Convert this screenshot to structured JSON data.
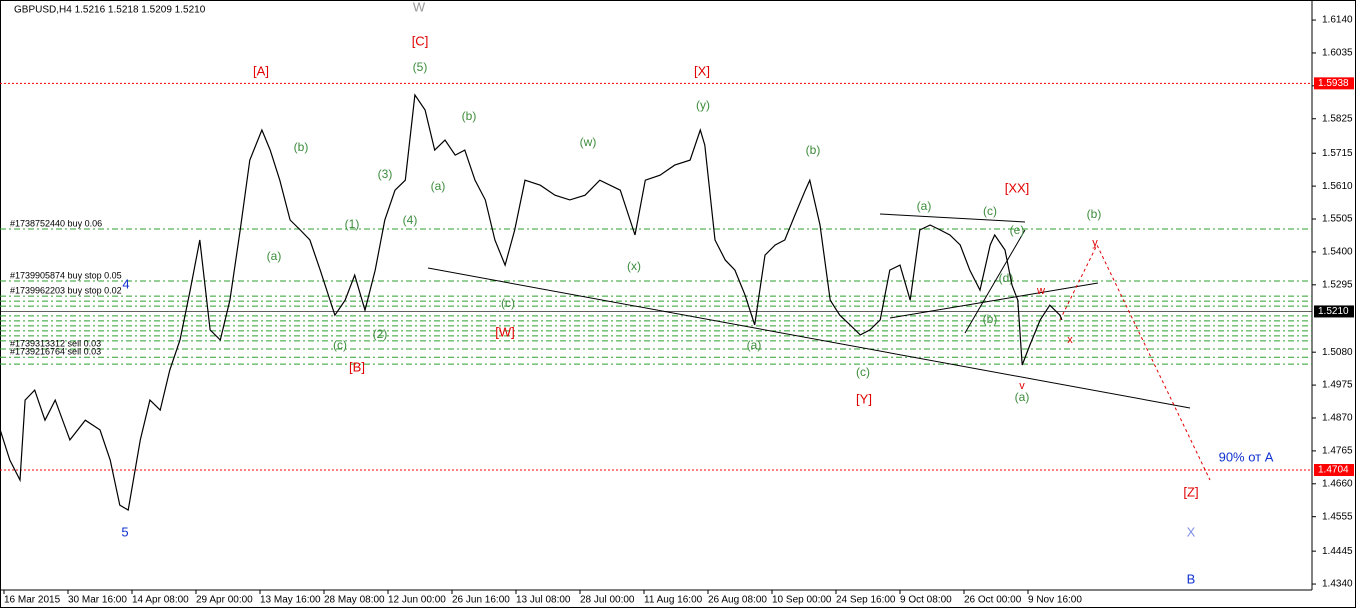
{
  "chart_data": {
    "type": "line",
    "title": "GBPUSD,H4  1.5216 1.5218 1.5209 1.5210",
    "color": "#000000",
    "xlim": [
      -0.0625,
      20.4375
    ],
    "ylim": [
      1.6204,
      1.4321
    ],
    "xticks": [
      {
        "value": 0,
        "label": "16 Mar 2015"
      },
      {
        "value": 1,
        "label": "30 Mar 16:00"
      },
      {
        "value": 2,
        "label": "14 Apr 08:00"
      },
      {
        "value": 3,
        "label": "29 Apr 00:00"
      },
      {
        "value": 4,
        "label": "13 May 16:00"
      },
      {
        "value": 5,
        "label": "28 May 08:00"
      },
      {
        "value": 6,
        "label": "12 Jun 00:00"
      },
      {
        "value": 7,
        "label": "26 Jun 16:00"
      },
      {
        "value": 8,
        "label": "13 Jul 08:00"
      },
      {
        "value": 9,
        "label": "28 Jul 00:00"
      },
      {
        "value": 10,
        "label": "11 Aug 16:00"
      },
      {
        "value": 11,
        "label": "26 Aug 08:00"
      },
      {
        "value": 12,
        "label": "10 Sep 00:00"
      },
      {
        "value": 13,
        "label": "24 Sep 16:00"
      },
      {
        "value": 14,
        "label": "9 Oct 08:00"
      },
      {
        "value": 15,
        "label": "26 Oct 00:00"
      },
      {
        "value": 16,
        "label": "9 Nov 16:00"
      }
    ],
    "yticks": [
      {
        "value": 1.614,
        "label": "1.6140"
      },
      {
        "value": 1.6035,
        "label": "1.6035"
      },
      {
        "value": 1.593,
        "label": "1.5930"
      },
      {
        "value": 1.5825,
        "label": "1.5825"
      },
      {
        "value": 1.5715,
        "label": "1.5715"
      },
      {
        "value": 1.561,
        "label": "1.5610"
      },
      {
        "value": 1.5505,
        "label": "1.5505"
      },
      {
        "value": 1.54,
        "label": "1.5400"
      },
      {
        "value": 1.5295,
        "label": "1.5295"
      },
      {
        "value": 1.508,
        "label": "1.5080"
      },
      {
        "value": 1.4975,
        "label": "1.4975"
      },
      {
        "value": 1.487,
        "label": "1.4870"
      },
      {
        "value": 1.4765,
        "label": "1.4765"
      },
      {
        "value": 1.466,
        "label": "1.4660"
      },
      {
        "value": 1.4555,
        "label": "1.4555"
      },
      {
        "value": 1.4445,
        "label": "1.4445"
      },
      {
        "value": 1.434,
        "label": "1.4340"
      }
    ],
    "x": [
      -0.06,
      0.09,
      0.25,
      0.33,
      0.48,
      0.64,
      0.8,
      1.03,
      1.27,
      1.5,
      1.66,
      1.81,
      1.94,
      2.13,
      2.28,
      2.44,
      2.59,
      2.75,
      2.91,
      3.06,
      3.22,
      3.38,
      3.53,
      3.69,
      3.84,
      4.03,
      4.16,
      4.31,
      4.47,
      4.63,
      4.78,
      4.94,
      5.17,
      5.33,
      5.48,
      5.64,
      5.8,
      5.95,
      6.11,
      6.27,
      6.42,
      6.58,
      6.73,
      6.89,
      7.05,
      7.2,
      7.36,
      7.52,
      7.67,
      7.83,
      7.98,
      8.14,
      8.38,
      8.61,
      8.84,
      9.08,
      9.31,
      9.63,
      9.86,
      10.02,
      10.25,
      10.48,
      10.72,
      10.88,
      10.95,
      11.11,
      11.27,
      11.42,
      11.58,
      11.73,
      11.89,
      12.05,
      12.2,
      12.36,
      12.52,
      12.59,
      12.75,
      12.91,
      13.06,
      13.22,
      13.38,
      13.53,
      13.69,
      13.84,
      14.0,
      14.16,
      14.31,
      14.47,
      14.63,
      14.78,
      14.94,
      15.09,
      15.25,
      15.41,
      15.48,
      15.64,
      15.75,
      15.84,
      15.91,
      16.03,
      16.19,
      16.34,
      16.5,
      16.53
    ],
    "values": [
      1.4832,
      1.4736,
      1.4672,
      1.4927,
      1.4959,
      1.4863,
      1.4927,
      1.48,
      1.4863,
      1.4832,
      1.4736,
      1.4592,
      1.4576,
      1.48,
      1.4927,
      1.4895,
      1.5023,
      1.5119,
      1.5278,
      1.5438,
      1.5151,
      1.5119,
      1.5246,
      1.547,
      1.5693,
      1.5789,
      1.5725,
      1.5629,
      1.5502,
      1.547,
      1.5438,
      1.5342,
      1.5198,
      1.5246,
      1.5326,
      1.5214,
      1.5342,
      1.5502,
      1.5597,
      1.5629,
      1.5901,
      1.5853,
      1.5725,
      1.5757,
      1.5709,
      1.5725,
      1.5629,
      1.5566,
      1.5438,
      1.5358,
      1.547,
      1.5629,
      1.5613,
      1.5581,
      1.5566,
      1.5581,
      1.5629,
      1.5597,
      1.5454,
      1.5629,
      1.5645,
      1.5677,
      1.5693,
      1.5789,
      1.5741,
      1.5438,
      1.5374,
      1.5342,
      1.5262,
      1.5167,
      1.539,
      1.5422,
      1.5438,
      1.5518,
      1.5597,
      1.5629,
      1.5486,
      1.5246,
      1.5198,
      1.5167,
      1.5135,
      1.5151,
      1.5183,
      1.5342,
      1.5358,
      1.5246,
      1.547,
      1.5486,
      1.547,
      1.5454,
      1.5422,
      1.5342,
      1.5278,
      1.5422,
      1.5454,
      1.5406,
      1.5294,
      1.5246,
      1.5039,
      1.5103,
      1.5183,
      1.523,
      1.5198,
      1.5183
    ],
    "levels": [
      {
        "value": 1.5938,
        "label": "1.5938",
        "color": "#ff0000"
      },
      {
        "value": 1.4704,
        "label": "1.4704",
        "color": "#ff0000"
      },
      {
        "value": 1.521,
        "label": "1.5210",
        "color": "#000000"
      }
    ],
    "orders": [
      {
        "value": 1.5473,
        "label": "#1738752440 buy 0.06"
      },
      {
        "value": 1.5307,
        "label": "#1739905874 buy stop 0.05"
      },
      {
        "value": 1.5259,
        "label": "#1739962203 buy stop 0.02"
      },
      {
        "value": 1.509,
        "label": "#1739313312 sell 0.03"
      },
      {
        "value": 1.5064,
        "label": "#1739216764 sell 0.03"
      }
    ],
    "order_lines": [
      1.5243,
      1.5227,
      1.5196,
      1.518,
      1.5164,
      1.5148,
      1.5132,
      1.5116,
      1.5042
    ],
    "wave_labels": [
      "W",
      "[C]",
      "[A]",
      "[X]",
      "[XX]",
      "[W]",
      "[B]",
      "[Y]",
      "[Z]",
      "y",
      "w",
      "x",
      "v",
      "(5)",
      "(y)",
      "(b)",
      "(w)",
      "(b)",
      "(b)",
      "(3)",
      "(a)",
      "(a)",
      "(c)",
      "(b)",
      "(1)",
      "(4)",
      "(e)",
      "(a)",
      "(x)",
      "(d)",
      "(c)",
      "(b)",
      "(2)",
      "(c)",
      "(a)",
      "(c)",
      "(a)",
      "4",
      "5",
      "90% от A",
      "X",
      "B"
    ]
  }
}
